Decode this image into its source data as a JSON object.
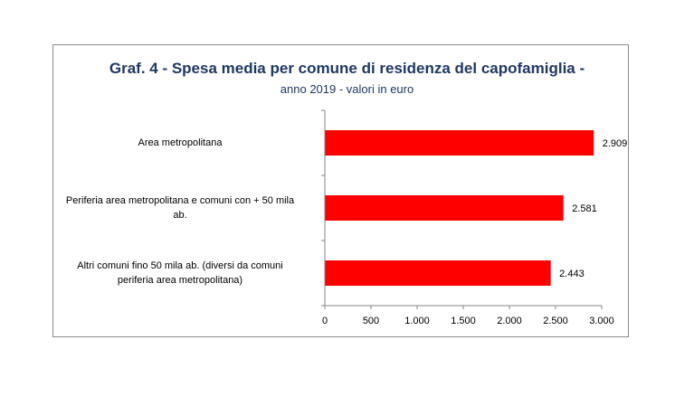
{
  "chart_data": {
    "type": "bar",
    "orientation": "horizontal",
    "title": "Graf. 4 - Spesa media per comune di residenza del capofamiglia -",
    "subtitle": "anno 2019 - valori in euro",
    "categories": [
      "Area metropolitana",
      "Periferia area metropolitana e comuni con + 50 mila ab.",
      "Altri comuni fino 50 mila ab. (diversi da comuni periferia area metropolitana)"
    ],
    "category_lines": [
      [
        "Area metropolitana"
      ],
      [
        "Periferia area metropolitana e comuni con + 50 mila",
        "ab."
      ],
      [
        "Altri comuni fino 50 mila ab. (diversi da comuni",
        "periferia area metropolitana)"
      ]
    ],
    "values": [
      2909,
      2581,
      2443
    ],
    "data_labels": [
      "2.909",
      "2.581",
      "2.443"
    ],
    "xlim": [
      0,
      3000
    ],
    "xticks": [
      0,
      500,
      1000,
      1500,
      2000,
      2500,
      3000
    ],
    "xtick_labels": [
      "0",
      "500",
      "1.000",
      "1.500",
      "2.000",
      "2.500",
      "3.000"
    ],
    "bar_color": "#ff0000",
    "title_color": "#1f3864",
    "grid": false,
    "legend": "none"
  }
}
